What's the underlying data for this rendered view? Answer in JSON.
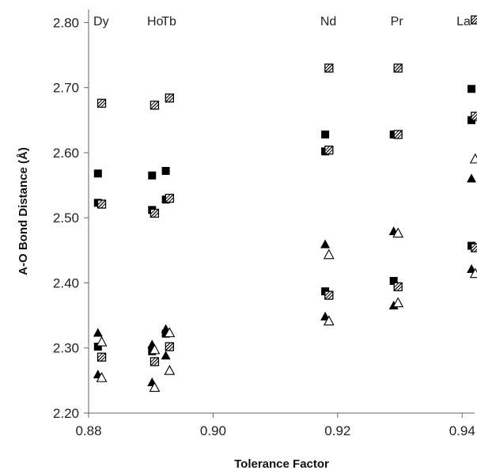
{
  "chart_data": {
    "type": "scatter",
    "title": "",
    "xlabel": "Tolerance Factor",
    "ylabel": "A-O Bond Distance (Å)",
    "xlim": [
      0.88,
      0.942
    ],
    "ylim": [
      2.2,
      2.82
    ],
    "xticks": [
      "0.88",
      "0.90",
      "0.92",
      "0.94"
    ],
    "yticks": [
      "2.20",
      "2.30",
      "2.40",
      "2.50",
      "2.60",
      "2.70",
      "2.80"
    ],
    "grid": false,
    "element_labels": [
      {
        "label": "Dy",
        "x": 0.8815
      },
      {
        "label": "Ho",
        "x": 0.8902
      },
      {
        "label": "Tb",
        "x": 0.8924
      },
      {
        "label": "Nd",
        "x": 0.918
      },
      {
        "label": "Pr",
        "x": 0.929
      },
      {
        "label": "La",
        "x": 0.9415
      }
    ],
    "series": [
      {
        "marker": "filled-square",
        "points": [
          [
            0.8815,
            2.568
          ],
          [
            0.8815,
            2.523
          ],
          [
            0.8815,
            2.302
          ],
          [
            0.8902,
            2.565
          ],
          [
            0.8902,
            2.512
          ],
          [
            0.8902,
            2.295
          ],
          [
            0.8924,
            2.572
          ],
          [
            0.8924,
            2.528
          ],
          [
            0.8924,
            2.322
          ],
          [
            0.918,
            2.628
          ],
          [
            0.918,
            2.602
          ],
          [
            0.918,
            2.387
          ],
          [
            0.929,
            2.628
          ],
          [
            0.929,
            2.403
          ],
          [
            0.9415,
            2.698
          ],
          [
            0.9415,
            2.65
          ],
          [
            0.9415,
            2.457
          ]
        ]
      },
      {
        "marker": "hatched-square",
        "points": [
          [
            0.8821,
            2.676
          ],
          [
            0.8821,
            2.521
          ],
          [
            0.8821,
            2.286
          ],
          [
            0.8906,
            2.673
          ],
          [
            0.8906,
            2.507
          ],
          [
            0.8906,
            2.279
          ],
          [
            0.893,
            2.684
          ],
          [
            0.893,
            2.53
          ],
          [
            0.893,
            2.302
          ],
          [
            0.9186,
            2.73
          ],
          [
            0.9186,
            2.604
          ],
          [
            0.9186,
            2.381
          ],
          [
            0.9297,
            2.73
          ],
          [
            0.9297,
            2.628
          ],
          [
            0.9297,
            2.394
          ],
          [
            0.9421,
            2.804
          ],
          [
            0.9421,
            2.656
          ],
          [
            0.9421,
            2.454
          ]
        ]
      },
      {
        "marker": "filled-triangle",
        "points": [
          [
            0.8815,
            2.324
          ],
          [
            0.8815,
            2.26
          ],
          [
            0.8902,
            2.306
          ],
          [
            0.8902,
            2.248
          ],
          [
            0.8924,
            2.33
          ],
          [
            0.8924,
            2.289
          ],
          [
            0.918,
            2.46
          ],
          [
            0.918,
            2.349
          ],
          [
            0.929,
            2.48
          ],
          [
            0.929,
            2.366
          ],
          [
            0.9415,
            2.561
          ],
          [
            0.9415,
            2.422
          ]
        ]
      },
      {
        "marker": "open-triangle",
        "points": [
          [
            0.8821,
            2.31
          ],
          [
            0.8821,
            2.255
          ],
          [
            0.8906,
            2.298
          ],
          [
            0.8906,
            2.24
          ],
          [
            0.893,
            2.324
          ],
          [
            0.893,
            2.266
          ],
          [
            0.9186,
            2.444
          ],
          [
            0.9186,
            2.342
          ],
          [
            0.9297,
            2.477
          ],
          [
            0.9297,
            2.37
          ],
          [
            0.9421,
            2.591
          ],
          [
            0.9421,
            2.415
          ]
        ]
      }
    ]
  }
}
